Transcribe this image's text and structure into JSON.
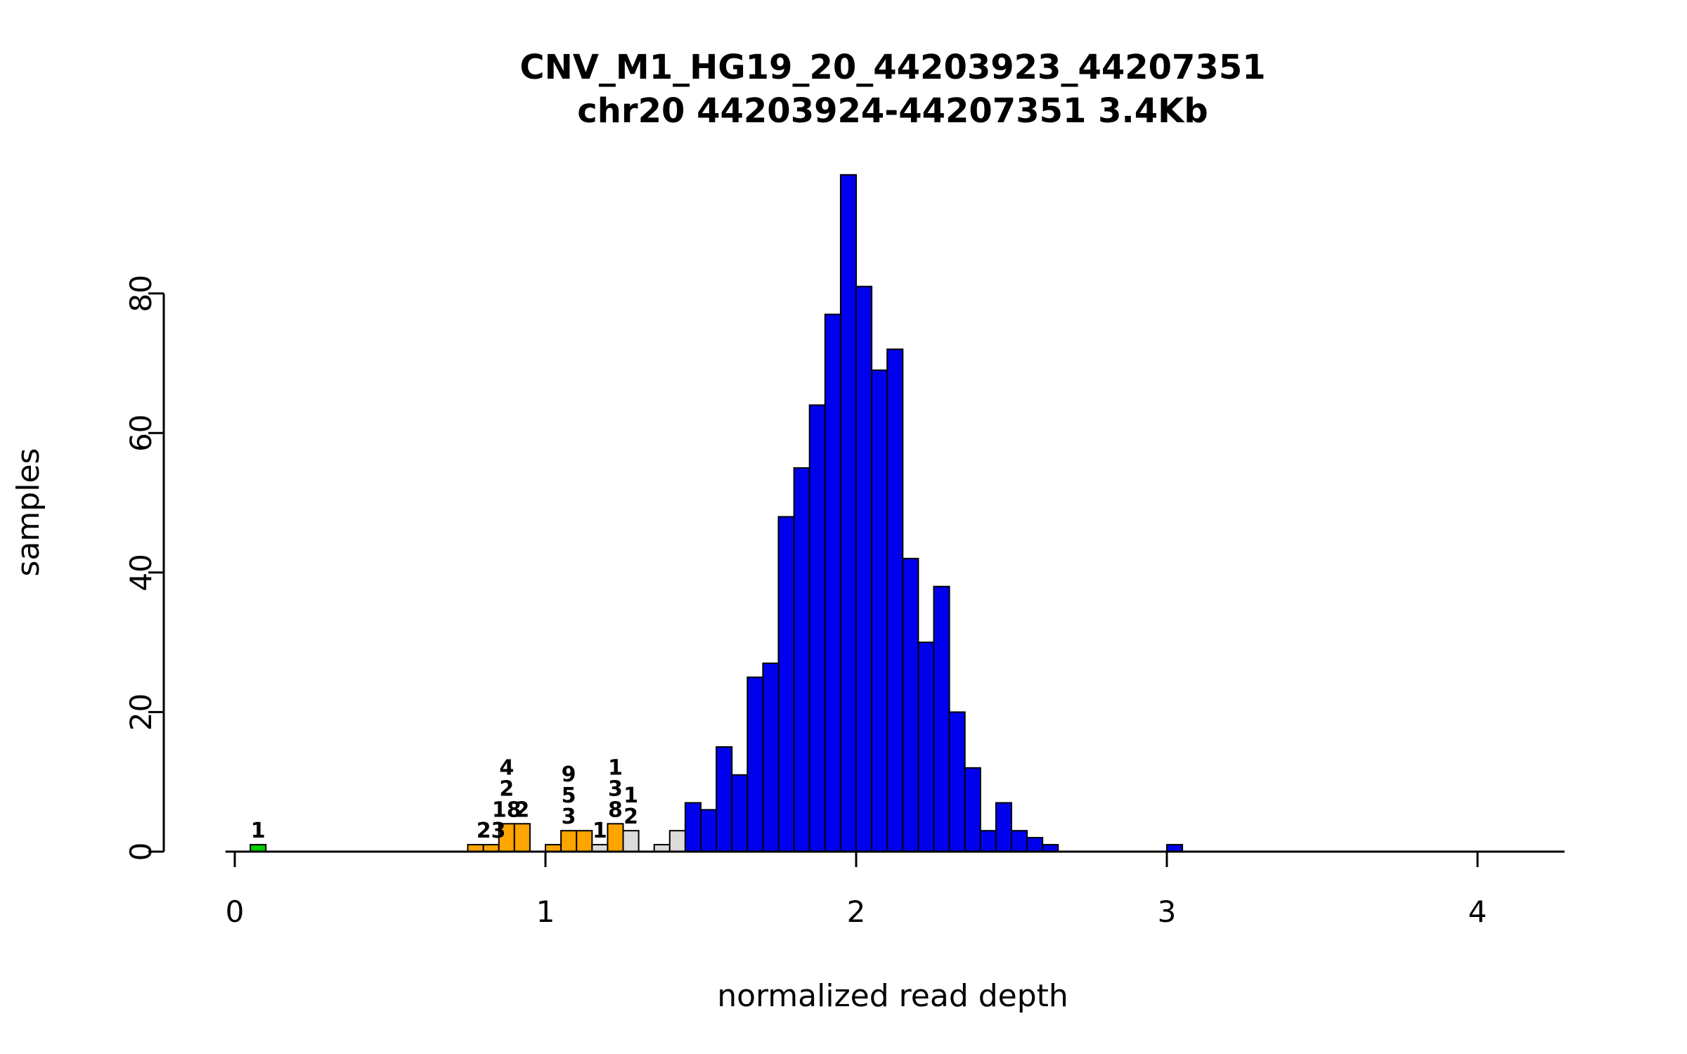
{
  "title_line1": "CNV_M1_HG19_20_44203923_44207351",
  "title_line2": "chr20 44203924-44207351 3.4Kb",
  "chart_data": {
    "type": "bar",
    "subtype": "histogram",
    "title": "CNV_M1_HG19_20_44203923_44207351",
    "subtitle": "chr20 44203924-44207351 3.4Kb",
    "xlabel": "normalized read depth",
    "ylabel": "samples",
    "bin_width": 0.05,
    "xlim": [
      -0.03,
      4.28
    ],
    "ylim": [
      0,
      97
    ],
    "x_ticks": [
      0,
      1,
      2,
      3,
      4
    ],
    "y_ticks": [
      0,
      20,
      40,
      60,
      80
    ],
    "grid": false,
    "legend": "none",
    "colors": {
      "blue": "#0000EE",
      "orange": "#FFA500",
      "green": "#00CD00",
      "gray": "#DCDCDC",
      "bar_border": "#000000"
    },
    "bins": [
      {
        "x": 0.05,
        "h": 1,
        "c": "green",
        "labels": [
          "1"
        ]
      },
      {
        "x": 0.75,
        "h": 1,
        "c": "orange"
      },
      {
        "x": 0.8,
        "h": 1,
        "c": "orange",
        "labels": [
          "23"
        ]
      },
      {
        "x": 0.85,
        "h": 4,
        "c": "orange",
        "labels": [
          "4",
          "2",
          "18"
        ]
      },
      {
        "x": 0.9,
        "h": 4,
        "c": "orange",
        "labels": [
          "2"
        ]
      },
      {
        "x": 1.0,
        "h": 1,
        "c": "orange"
      },
      {
        "x": 1.05,
        "h": 3,
        "c": "orange",
        "labels": [
          "9",
          "5",
          "3"
        ]
      },
      {
        "x": 1.1,
        "h": 3,
        "c": "orange"
      },
      {
        "x": 1.15,
        "h": 1,
        "c": "gray",
        "labels": [
          "1"
        ]
      },
      {
        "x": 1.2,
        "h": 4,
        "c": "orange",
        "labels": [
          "1",
          "3",
          "8"
        ]
      },
      {
        "x": 1.25,
        "h": 3,
        "c": "gray",
        "labels": [
          "1",
          "2"
        ]
      },
      {
        "x": 1.35,
        "h": 1,
        "c": "gray"
      },
      {
        "x": 1.4,
        "h": 3,
        "c": "gray"
      },
      {
        "x": 1.45,
        "h": 7,
        "c": "blue"
      },
      {
        "x": 1.5,
        "h": 6,
        "c": "blue"
      },
      {
        "x": 1.55,
        "h": 15,
        "c": "blue"
      },
      {
        "x": 1.6,
        "h": 11,
        "c": "blue"
      },
      {
        "x": 1.65,
        "h": 25,
        "c": "blue"
      },
      {
        "x": 1.7,
        "h": 27,
        "c": "blue"
      },
      {
        "x": 1.75,
        "h": 48,
        "c": "blue"
      },
      {
        "x": 1.8,
        "h": 55,
        "c": "blue"
      },
      {
        "x": 1.85,
        "h": 64,
        "c": "blue"
      },
      {
        "x": 1.9,
        "h": 77,
        "c": "blue"
      },
      {
        "x": 1.95,
        "h": 97,
        "c": "blue"
      },
      {
        "x": 2.0,
        "h": 81,
        "c": "blue"
      },
      {
        "x": 2.05,
        "h": 69,
        "c": "blue"
      },
      {
        "x": 2.1,
        "h": 72,
        "c": "blue"
      },
      {
        "x": 2.15,
        "h": 42,
        "c": "blue"
      },
      {
        "x": 2.2,
        "h": 30,
        "c": "blue"
      },
      {
        "x": 2.25,
        "h": 38,
        "c": "blue"
      },
      {
        "x": 2.3,
        "h": 20,
        "c": "blue"
      },
      {
        "x": 2.35,
        "h": 12,
        "c": "blue"
      },
      {
        "x": 2.4,
        "h": 3,
        "c": "blue"
      },
      {
        "x": 2.45,
        "h": 7,
        "c": "blue"
      },
      {
        "x": 2.5,
        "h": 3,
        "c": "blue"
      },
      {
        "x": 2.55,
        "h": 2,
        "c": "blue"
      },
      {
        "x": 2.6,
        "h": 1,
        "c": "blue"
      },
      {
        "x": 3.0,
        "h": 1,
        "c": "blue"
      }
    ]
  }
}
